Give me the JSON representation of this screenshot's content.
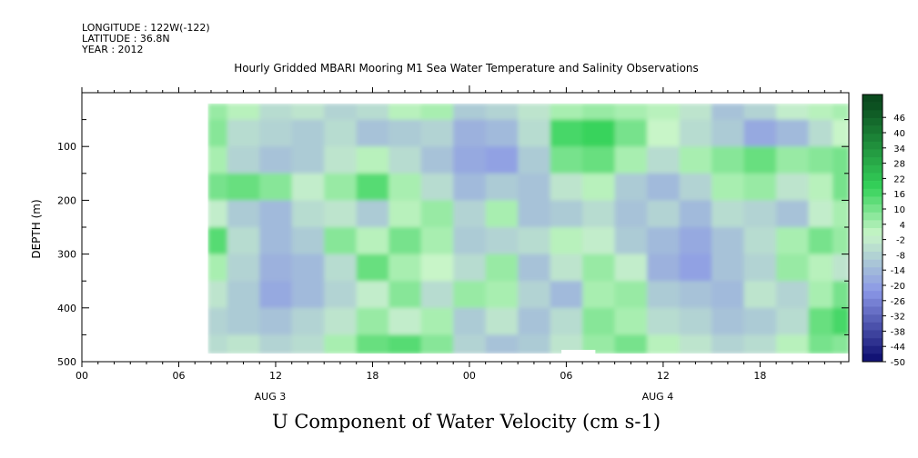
{
  "header": {
    "longitude": "LONGITUDE : 122W(-122)",
    "latitude": "LATITUDE : 36.8N",
    "year": "YEAR : 2012"
  },
  "colors": {
    "strong_negative": "#0b0b6e",
    "negative": "#8a96e6",
    "near_zero": "#c8f5c8",
    "positive": "#35d35a",
    "strong_positive": "#0a4a1e",
    "missing": "#ffffff"
  },
  "chart_data": {
    "type": "heatmap",
    "title": "U Component of Water Velocity (cm s-1)",
    "subtitle": "Hourly Gridded MBARI Mooring M1 Sea Water Temperature and Salinity Observations",
    "xlabel": "",
    "ylabel": "DEPTH (m)",
    "x_tick_labels": [
      "00",
      "06",
      "12",
      "18",
      "00",
      "06",
      "12",
      "18"
    ],
    "x_tick_hours": [
      0,
      6,
      12,
      18,
      24,
      30,
      36,
      42
    ],
    "date_labels": [
      {
        "label": "AUG  3",
        "hour": 12
      },
      {
        "label": "AUG  4",
        "hour": 36
      }
    ],
    "xlim_hours": [
      0,
      47.5
    ],
    "data_start_hour": 7.8,
    "y_ticks": [
      100,
      200,
      300,
      400,
      500
    ],
    "ylim": [
      500,
      0
    ],
    "data_depth_range": [
      20,
      485
    ],
    "colorbar_levels": [
      -50,
      -44,
      -38,
      -32,
      -26,
      -20,
      -14,
      -8,
      -2,
      4,
      10,
      16,
      22,
      28,
      34,
      40,
      46
    ],
    "colorbar_level_labels": [
      "-50",
      "-44",
      "-38",
      "-32",
      "-26",
      "-20",
      "-14",
      "-8",
      "-2",
      "4",
      "10",
      "16",
      "22",
      "28",
      "34",
      "40",
      "46"
    ],
    "field_grid": {
      "x_hours": [
        8,
        10,
        12,
        14,
        16,
        18,
        20,
        22,
        24,
        26,
        28,
        30,
        32,
        34,
        36,
        38,
        40,
        42,
        44,
        46,
        47
      ],
      "depths": [
        25,
        75,
        125,
        175,
        225,
        275,
        325,
        375,
        425,
        475
      ],
      "values": [
        [
          6,
          2,
          -6,
          -4,
          -8,
          -6,
          2,
          4,
          -10,
          -8,
          -4,
          4,
          6,
          4,
          2,
          -4,
          -12,
          -8,
          -2,
          2,
          4
        ],
        [
          8,
          -6,
          -8,
          -10,
          -6,
          -12,
          -10,
          -8,
          -16,
          -14,
          -6,
          16,
          18,
          10,
          0,
          -6,
          -10,
          -18,
          -14,
          -6,
          0
        ],
        [
          4,
          -8,
          -12,
          -10,
          -4,
          2,
          -6,
          -12,
          -18,
          -20,
          -10,
          10,
          12,
          4,
          -6,
          4,
          8,
          12,
          6,
          8,
          10
        ],
        [
          10,
          12,
          8,
          -2,
          6,
          14,
          4,
          -6,
          -14,
          -10,
          -12,
          -4,
          2,
          -10,
          -14,
          -8,
          4,
          6,
          -4,
          2,
          10
        ],
        [
          -2,
          -10,
          -14,
          -6,
          -4,
          -10,
          2,
          6,
          -8,
          4,
          -12,
          -10,
          -6,
          -12,
          -8,
          -14,
          -6,
          -8,
          -12,
          -2,
          4
        ],
        [
          14,
          -6,
          -14,
          -10,
          8,
          2,
          10,
          4,
          -10,
          -8,
          -6,
          2,
          -2,
          -10,
          -14,
          -18,
          -12,
          -6,
          4,
          10,
          6
        ],
        [
          4,
          -8,
          -16,
          -14,
          -6,
          12,
          4,
          0,
          -6,
          6,
          -12,
          -4,
          6,
          -2,
          -16,
          -20,
          -12,
          -8,
          6,
          2,
          -4
        ],
        [
          -4,
          -10,
          -18,
          -14,
          -8,
          -2,
          8,
          -6,
          6,
          4,
          -8,
          -14,
          4,
          6,
          -10,
          -12,
          -14,
          -4,
          -8,
          4,
          10
        ],
        [
          -8,
          -10,
          -12,
          -8,
          -4,
          6,
          -2,
          4,
          -10,
          -4,
          -12,
          -6,
          8,
          4,
          -6,
          -8,
          -12,
          -10,
          -6,
          12,
          16
        ],
        [
          -6,
          -4,
          -8,
          -6,
          4,
          12,
          14,
          8,
          -8,
          -12,
          -10,
          -4,
          6,
          10,
          2,
          -4,
          -8,
          -6,
          2,
          10,
          8
        ]
      ]
    },
    "missing_regions": [
      {
        "x_hours": [
          0,
          7.8
        ],
        "depths": [
          0,
          500
        ]
      },
      {
        "x_hours": [
          29.7,
          31.8
        ],
        "depths": [
          478,
          500
        ]
      }
    ],
    "grid": false
  }
}
